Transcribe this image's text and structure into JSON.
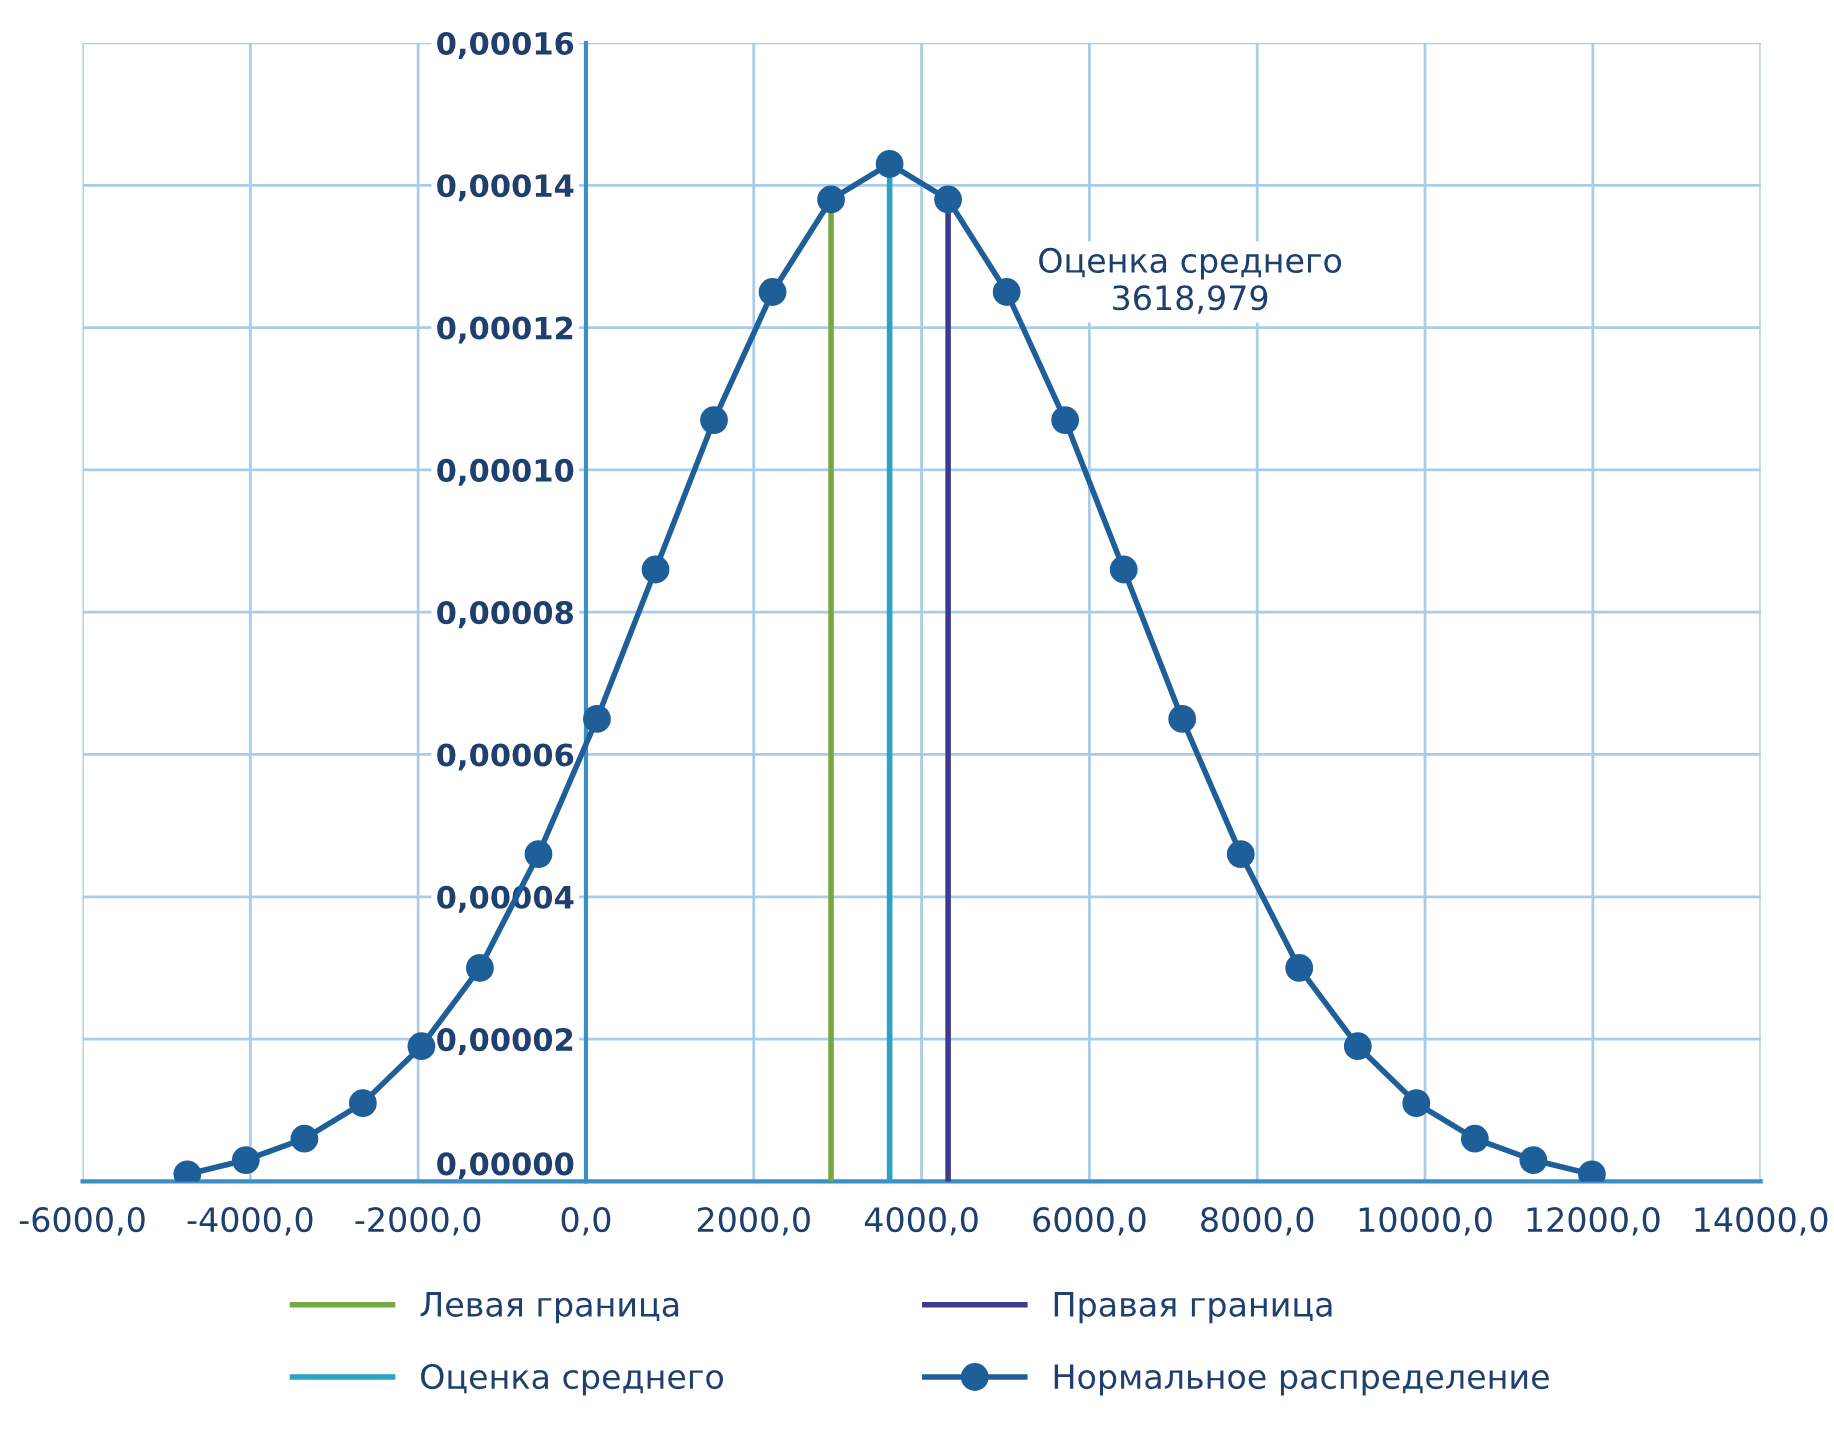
{
  "chart_data": {
    "type": "line",
    "annotations": [
      "Оценка среднего\n3618,979"
    ],
    "xlim": [
      -6000,
      14000
    ],
    "ylim": [
      0,
      0.00016
    ],
    "xticks": [
      {
        "value": -6000,
        "label": "-6000,0"
      },
      {
        "value": -4000,
        "label": "-4000,0"
      },
      {
        "value": -2000,
        "label": "-2000,0"
      },
      {
        "value": 0,
        "label": "0,0"
      },
      {
        "value": 2000,
        "label": "2000,0"
      },
      {
        "value": 4000,
        "label": "4000,0"
      },
      {
        "value": 6000,
        "label": "6000,0"
      },
      {
        "value": 8000,
        "label": "8000,0"
      },
      {
        "value": 10000,
        "label": "10000,0"
      },
      {
        "value": 12000,
        "label": "12000,0"
      },
      {
        "value": 14000,
        "label": "14000,0"
      }
    ],
    "yticks": [
      {
        "value": 0,
        "label": "0,00000"
      },
      {
        "value": 2e-05,
        "label": "0,00002"
      },
      {
        "value": 4e-05,
        "label": "0,00004"
      },
      {
        "value": 6e-05,
        "label": "0,00006"
      },
      {
        "value": 8e-05,
        "label": "0,00008"
      },
      {
        "value": 0.0001,
        "label": "0,00010"
      },
      {
        "value": 0.00012,
        "label": "0,00012"
      },
      {
        "value": 0.00014,
        "label": "0,00014"
      },
      {
        "value": 0.00016,
        "label": "0,00016"
      }
    ],
    "grid": true,
    "legend": "bottom",
    "line_style": "solid",
    "series": [
      {
        "name": "Левая граница",
        "color": "#78a842",
        "marker": "none",
        "x": [
          2921,
          2921
        ],
        "values": [
          0,
          0.000138
        ]
      },
      {
        "name": "Правая граница",
        "color": "#3e3a8c",
        "marker": "none",
        "x": [
          4316,
          4316
        ],
        "values": [
          0,
          0.000138
        ]
      },
      {
        "name": "Оценка среднего",
        "color": "#2aa3c2",
        "marker": "none",
        "x": [
          3619,
          3619
        ],
        "values": [
          0,
          0.0001427
        ]
      },
      {
        "name": "Нормальное распределение",
        "color": "#1f5f99",
        "marker": "circle",
        "x": [
          -4751,
          -4054,
          -3356,
          -2659,
          -1961,
          -1264,
          -566,
          131,
          829,
          1526,
          2224,
          2921,
          3619,
          4316,
          5014,
          5711,
          6409,
          7106,
          7804,
          8501,
          9199,
          9896,
          10594,
          11291,
          11989
        ],
        "values": [
          1e-06,
          3e-06,
          6e-06,
          1.1e-05,
          1.9e-05,
          3e-05,
          4.6e-05,
          6.5e-05,
          8.6e-05,
          0.000107,
          0.000125,
          0.000138,
          0.000143,
          0.000138,
          0.000125,
          0.000107,
          8.6e-05,
          6.5e-05,
          4.6e-05,
          3e-05,
          1.9e-05,
          1.1e-05,
          6e-06,
          3e-06,
          1e-06
        ]
      }
    ]
  }
}
